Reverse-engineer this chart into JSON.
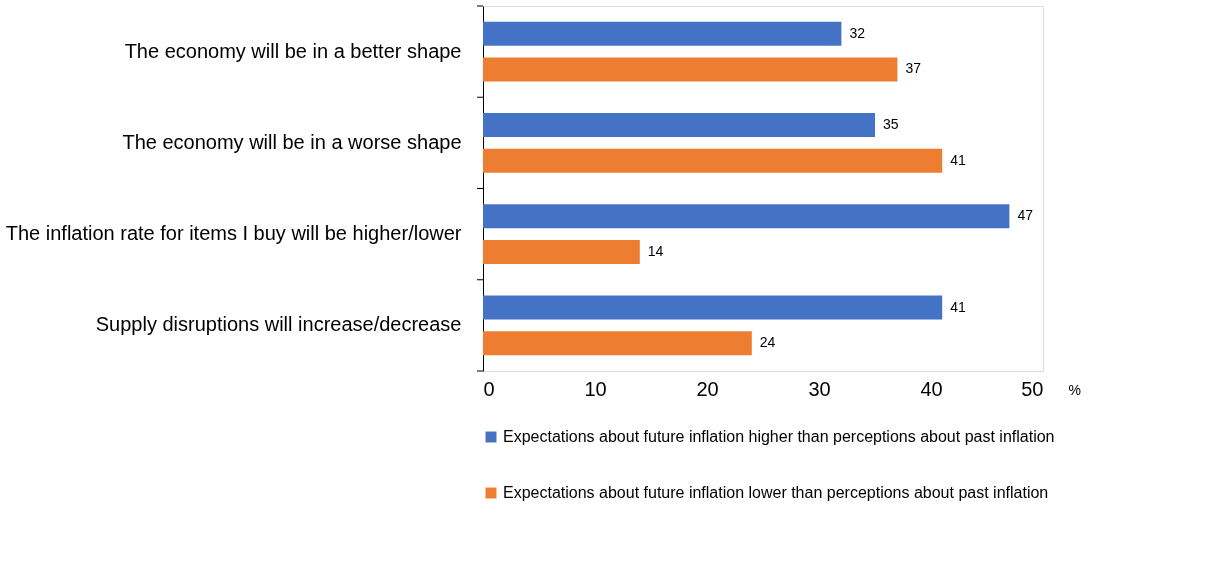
{
  "chart_data": {
    "type": "bar",
    "orientation": "horizontal",
    "categories": [
      "The economy will be in a better shape",
      "The economy will be in a worse shape",
      "The inflation rate for items I buy will be higher/lower",
      "Supply disruptions will increase/decrease"
    ],
    "series": [
      {
        "name": "Expectations about future inflation higher than perceptions about past inflation",
        "color": "#4472c4",
        "values": [
          32,
          35,
          47,
          41
        ]
      },
      {
        "name": "Expectations about future inflation lower than perceptions about past inflation",
        "color": "#ed7d31",
        "values": [
          37,
          41,
          14,
          24
        ]
      }
    ],
    "xlim": [
      0,
      50
    ],
    "xticks": [
      0,
      10,
      20,
      30,
      40,
      50
    ],
    "xlabel": "%",
    "data_labels": true,
    "grid": false,
    "legend": "bottom"
  }
}
